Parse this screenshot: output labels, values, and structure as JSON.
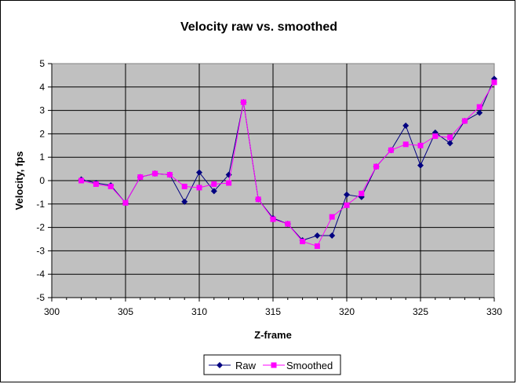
{
  "chart_data": {
    "type": "line",
    "title": "Velocity raw vs. smoothed",
    "xlabel": "Z-frame",
    "ylabel": "Velocity, fps",
    "xlim": [
      300,
      330
    ],
    "ylim": [
      -5,
      5
    ],
    "x_ticks": [
      300,
      305,
      310,
      315,
      320,
      325,
      330
    ],
    "y_ticks": [
      -5,
      -4,
      -3,
      -2,
      -1,
      0,
      1,
      2,
      3,
      4,
      5
    ],
    "grid": true,
    "legend_position": "bottom",
    "series": [
      {
        "name": "Raw",
        "color": "#000080",
        "marker": "diamond",
        "x": [
          302,
          303,
          304,
          305,
          306,
          307,
          308,
          309,
          310,
          311,
          312,
          313,
          314,
          315,
          316,
          317,
          318,
          319,
          320,
          321,
          322,
          323,
          324,
          325,
          326,
          327,
          328,
          329,
          330
        ],
        "values": [
          0.05,
          -0.1,
          -0.2,
          -0.95,
          0.15,
          0.3,
          0.25,
          -0.9,
          0.35,
          -0.45,
          0.25,
          3.35,
          -0.8,
          -1.6,
          -1.85,
          -2.55,
          -2.35,
          -2.35,
          -0.6,
          -0.7,
          0.6,
          1.3,
          2.35,
          0.65,
          2.05,
          1.6,
          2.55,
          2.9,
          4.35
        ]
      },
      {
        "name": "Smoothed",
        "color": "#ff00ff",
        "marker": "square",
        "x": [
          302,
          303,
          304,
          305,
          306,
          307,
          308,
          309,
          310,
          311,
          312,
          313,
          314,
          315,
          316,
          317,
          318,
          319,
          320,
          321,
          322,
          323,
          324,
          325,
          326,
          327,
          328,
          329,
          330
        ],
        "values": [
          0.0,
          -0.15,
          -0.25,
          -0.95,
          0.15,
          0.3,
          0.25,
          -0.25,
          -0.3,
          -0.15,
          -0.1,
          3.35,
          -0.8,
          -1.65,
          -1.85,
          -2.6,
          -2.8,
          -1.55,
          -1.05,
          -0.55,
          0.6,
          1.3,
          1.55,
          1.5,
          1.9,
          1.85,
          2.55,
          3.15,
          4.2
        ]
      }
    ]
  }
}
